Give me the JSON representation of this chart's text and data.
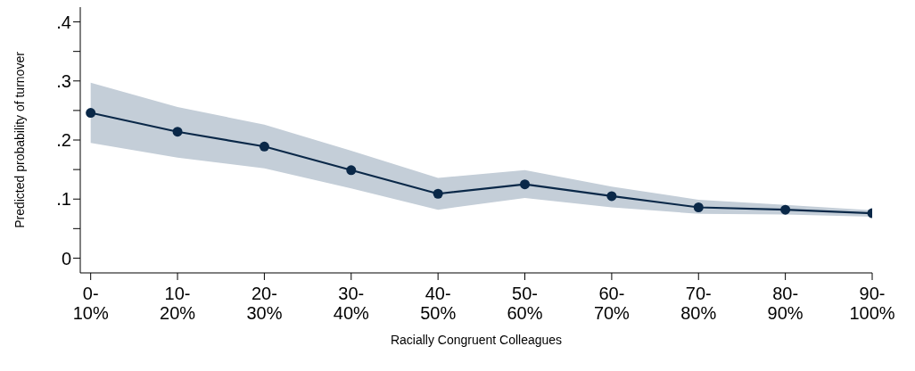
{
  "chart_data": {
    "type": "line",
    "xlabel": "Racially Congruent Colleagues",
    "ylabel": "Predicted probability of turnover",
    "categories": [
      "0-10%",
      "10-20%",
      "20-30%",
      "30-40%",
      "40-50%",
      "50-60%",
      "60-70%",
      "70-80%",
      "80-90%",
      "90-100%"
    ],
    "series": [
      {
        "color": "#0a2848",
        "values": [
          0.246,
          0.214,
          0.189,
          0.149,
          0.109,
          0.125,
          0.105,
          0.086,
          0.082,
          0.076
        ],
        "lower": [
          0.195,
          0.17,
          0.152,
          0.118,
          0.082,
          0.102,
          0.086,
          0.075,
          0.074,
          0.07
        ],
        "upper": [
          0.297,
          0.256,
          0.226,
          0.182,
          0.136,
          0.149,
          0.121,
          0.099,
          0.09,
          0.081
        ]
      }
    ],
    "ylim": [
      -0.025,
      0.425
    ],
    "yticks": [
      0,
      {
        "value": 0.05,
        "label": null
      },
      {
        "value": 0.1,
        "label": ".1"
      },
      {
        "value": 0.15,
        "label": null
      },
      {
        "value": 0.2,
        "label": ".2"
      },
      {
        "value": 0.25,
        "label": null
      },
      {
        "value": 0.3,
        "label": ".3"
      },
      {
        "value": 0.35,
        "label": null
      },
      {
        "value": 0.4,
        "label": ".4"
      }
    ],
    "grid": false,
    "legend": false,
    "marker": "circle",
    "line_style": "solid"
  }
}
